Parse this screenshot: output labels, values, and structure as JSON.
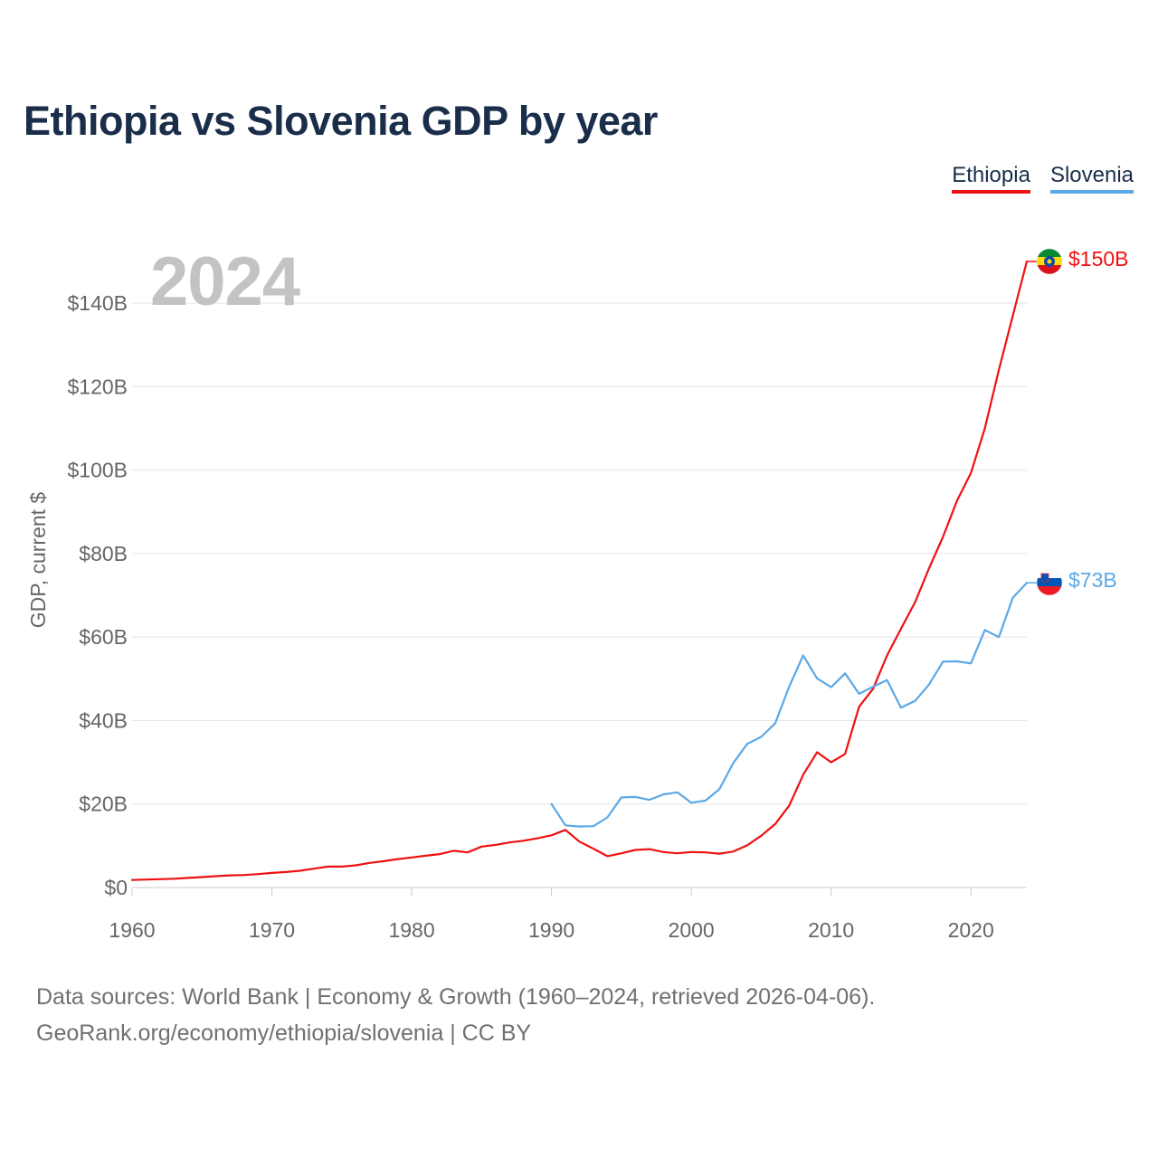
{
  "title": "Ethiopia vs Slovenia GDP by year",
  "year_label": "2024",
  "legend": {
    "ethiopia": "Ethiopia",
    "slovenia": "Slovenia"
  },
  "footer": {
    "line1": "Data sources: World Bank | Economy & Growth (1960–2024, retrieved 2026-04-06).",
    "line2": "GeoRank.org/economy/ethiopia/slovenia | CC BY"
  },
  "colors": {
    "ethiopia": "#ee1111",
    "slovenia": "#5ba8e6",
    "title": "#1a2e4a",
    "grid": "#e6e6e6",
    "tick": "#666666"
  },
  "chart_data": {
    "type": "line",
    "title": "Ethiopia vs Slovenia GDP by year",
    "xlabel": "",
    "ylabel": "GDP, current $",
    "xlim": [
      1960,
      2024
    ],
    "ylim": [
      0,
      150
    ],
    "x_ticks": [
      1960,
      1970,
      1980,
      1990,
      2000,
      2010,
      2020
    ],
    "x_tick_labels": [
      "1960",
      "1970",
      "1980",
      "1990",
      "2000",
      "2010",
      "2020"
    ],
    "y_ticks": [
      0,
      20,
      40,
      60,
      80,
      100,
      120,
      140
    ],
    "y_tick_labels": [
      "$0",
      "$20B",
      "$40B",
      "$60B",
      "$80B",
      "$100B",
      "$120B",
      "$140B"
    ],
    "grid": true,
    "legend_position": "top-right",
    "series": [
      {
        "name": "Ethiopia",
        "color": "#ee1111",
        "end_label": "$150B",
        "flag": "ethiopia-flag",
        "x": [
          1960,
          1961,
          1962,
          1963,
          1964,
          1965,
          1966,
          1967,
          1968,
          1969,
          1970,
          1971,
          1972,
          1973,
          1974,
          1975,
          1976,
          1977,
          1978,
          1979,
          1980,
          1981,
          1982,
          1983,
          1984,
          1985,
          1986,
          1987,
          1988,
          1989,
          1990,
          1991,
          1992,
          1993,
          1994,
          1995,
          1996,
          1997,
          1998,
          1999,
          2000,
          2001,
          2002,
          2003,
          2004,
          2005,
          2006,
          2007,
          2008,
          2009,
          2010,
          2011,
          2012,
          2013,
          2014,
          2015,
          2016,
          2017,
          2018,
          2019,
          2020,
          2021,
          2022,
          2023,
          2024
        ],
        "values": [
          1.8,
          1.9,
          2.0,
          2.1,
          2.3,
          2.5,
          2.7,
          2.9,
          3.0,
          3.2,
          3.5,
          3.7,
          4.0,
          4.5,
          5.0,
          5.0,
          5.3,
          5.9,
          6.3,
          6.8,
          7.2,
          7.6,
          8.0,
          8.8,
          8.4,
          9.8,
          10.2,
          10.8,
          11.2,
          11.8,
          12.5,
          13.8,
          11.0,
          9.3,
          7.5,
          8.2,
          9.0,
          9.2,
          8.5,
          8.2,
          8.5,
          8.4,
          8.1,
          8.6,
          10.1,
          12.4,
          15.2,
          19.6,
          27.0,
          32.4,
          30.0,
          32.0,
          43.3,
          47.6,
          55.6,
          62.0,
          68.3,
          76.4,
          84.0,
          92.6,
          99.3,
          110.0,
          124.0,
          137.0,
          150.0
        ]
      },
      {
        "name": "Slovenia",
        "color": "#5ba8e6",
        "end_label": "$73B",
        "flag": "slovenia-flag",
        "x": [
          1990,
          1991,
          1992,
          1993,
          1994,
          1995,
          1996,
          1997,
          1998,
          1999,
          2000,
          2001,
          2002,
          2003,
          2004,
          2005,
          2006,
          2007,
          2008,
          2009,
          2010,
          2011,
          2012,
          2013,
          2014,
          2015,
          2016,
          2017,
          2018,
          2019,
          2020,
          2021,
          2022,
          2023,
          2024
        ],
        "values": [
          20.0,
          14.9,
          14.6,
          14.7,
          16.8,
          21.6,
          21.7,
          21.0,
          22.3,
          22.8,
          20.3,
          20.8,
          23.5,
          29.8,
          34.4,
          36.1,
          39.3,
          48.1,
          55.6,
          50.1,
          48.0,
          51.3,
          46.4,
          48.1,
          49.7,
          43.1,
          44.7,
          48.6,
          54.1,
          54.2,
          53.7,
          61.7,
          60.0,
          69.4,
          73.0
        ]
      }
    ]
  }
}
